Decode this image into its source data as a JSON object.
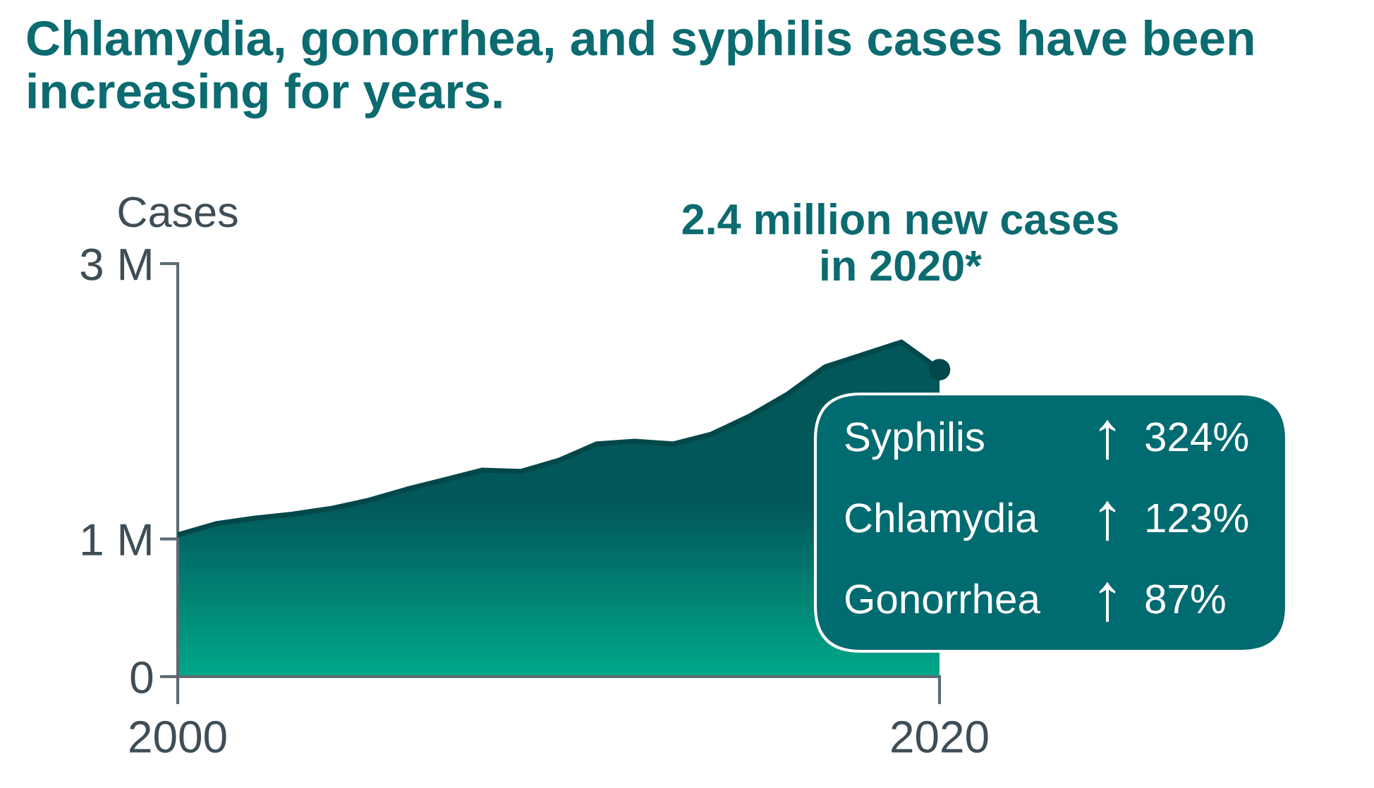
{
  "chart_data": {
    "type": "area",
    "title": "Chlamydia, gonorrhea, and syphilis cases have been increasing for years.",
    "ylabel": "Cases",
    "x": [
      2000,
      2001,
      2002,
      2003,
      2004,
      2005,
      2006,
      2007,
      2008,
      2009,
      2010,
      2011,
      2012,
      2013,
      2014,
      2015,
      2016,
      2017,
      2018,
      2019,
      2020
    ],
    "series": [
      {
        "color": "#03585a",
        "values": [
          1.03,
          1.11,
          1.15,
          1.18,
          1.22,
          1.28,
          1.36,
          1.43,
          1.5,
          1.49,
          1.57,
          1.69,
          1.71,
          1.69,
          1.76,
          1.89,
          2.05,
          2.25,
          2.34,
          2.43,
          2.23
        ]
      }
    ],
    "xlim": [
      2000,
      2020
    ],
    "xticks": [
      2000,
      2020
    ],
    "ylim": [
      0,
      3
    ],
    "yticks": [
      0,
      {
        "value": 1,
        "label": "1 M"
      },
      {
        "value": 3,
        "label": "3 M"
      }
    ],
    "annotations": [
      {
        "text": "2.4 million new cases\nin 2020*",
        "x": 2020,
        "y": 2.23
      },
      "Syphilis ↑ 324%",
      "Chlamydia ↑ 123%",
      "Gonorrhea ↑ 87%"
    ]
  }
}
